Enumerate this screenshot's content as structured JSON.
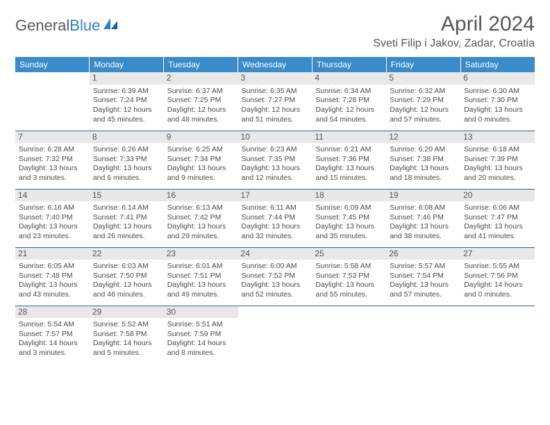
{
  "brand": {
    "part1": "General",
    "part2": "Blue"
  },
  "title": "April 2024",
  "location": "Sveti Filip i Jakov, Zadar, Croatia",
  "day_headers": [
    "Sunday",
    "Monday",
    "Tuesday",
    "Wednesday",
    "Thursday",
    "Friday",
    "Saturday"
  ],
  "colors": {
    "header_bg": "#3a8bc9",
    "header_text": "#ffffff",
    "daynum_bg": "#e8e8e8",
    "rule": "#35648f",
    "text": "#4a4a4a",
    "title": "#555555"
  },
  "weeks": [
    [
      null,
      {
        "n": "1",
        "sr": "Sunrise: 6:39 AM",
        "ss": "Sunset: 7:24 PM",
        "d1": "Daylight: 12 hours",
        "d2": "and 45 minutes."
      },
      {
        "n": "2",
        "sr": "Sunrise: 6:37 AM",
        "ss": "Sunset: 7:25 PM",
        "d1": "Daylight: 12 hours",
        "d2": "and 48 minutes."
      },
      {
        "n": "3",
        "sr": "Sunrise: 6:35 AM",
        "ss": "Sunset: 7:27 PM",
        "d1": "Daylight: 12 hours",
        "d2": "and 51 minutes."
      },
      {
        "n": "4",
        "sr": "Sunrise: 6:34 AM",
        "ss": "Sunset: 7:28 PM",
        "d1": "Daylight: 12 hours",
        "d2": "and 54 minutes."
      },
      {
        "n": "5",
        "sr": "Sunrise: 6:32 AM",
        "ss": "Sunset: 7:29 PM",
        "d1": "Daylight: 12 hours",
        "d2": "and 57 minutes."
      },
      {
        "n": "6",
        "sr": "Sunrise: 6:30 AM",
        "ss": "Sunset: 7:30 PM",
        "d1": "Daylight: 13 hours",
        "d2": "and 0 minutes."
      }
    ],
    [
      {
        "n": "7",
        "sr": "Sunrise: 6:28 AM",
        "ss": "Sunset: 7:32 PM",
        "d1": "Daylight: 13 hours",
        "d2": "and 3 minutes."
      },
      {
        "n": "8",
        "sr": "Sunrise: 6:26 AM",
        "ss": "Sunset: 7:33 PM",
        "d1": "Daylight: 13 hours",
        "d2": "and 6 minutes."
      },
      {
        "n": "9",
        "sr": "Sunrise: 6:25 AM",
        "ss": "Sunset: 7:34 PM",
        "d1": "Daylight: 13 hours",
        "d2": "and 9 minutes."
      },
      {
        "n": "10",
        "sr": "Sunrise: 6:23 AM",
        "ss": "Sunset: 7:35 PM",
        "d1": "Daylight: 13 hours",
        "d2": "and 12 minutes."
      },
      {
        "n": "11",
        "sr": "Sunrise: 6:21 AM",
        "ss": "Sunset: 7:36 PM",
        "d1": "Daylight: 13 hours",
        "d2": "and 15 minutes."
      },
      {
        "n": "12",
        "sr": "Sunrise: 6:20 AM",
        "ss": "Sunset: 7:38 PM",
        "d1": "Daylight: 13 hours",
        "d2": "and 18 minutes."
      },
      {
        "n": "13",
        "sr": "Sunrise: 6:18 AM",
        "ss": "Sunset: 7:39 PM",
        "d1": "Daylight: 13 hours",
        "d2": "and 20 minutes."
      }
    ],
    [
      {
        "n": "14",
        "sr": "Sunrise: 6:16 AM",
        "ss": "Sunset: 7:40 PM",
        "d1": "Daylight: 13 hours",
        "d2": "and 23 minutes."
      },
      {
        "n": "15",
        "sr": "Sunrise: 6:14 AM",
        "ss": "Sunset: 7:41 PM",
        "d1": "Daylight: 13 hours",
        "d2": "and 26 minutes."
      },
      {
        "n": "16",
        "sr": "Sunrise: 6:13 AM",
        "ss": "Sunset: 7:42 PM",
        "d1": "Daylight: 13 hours",
        "d2": "and 29 minutes."
      },
      {
        "n": "17",
        "sr": "Sunrise: 6:11 AM",
        "ss": "Sunset: 7:44 PM",
        "d1": "Daylight: 13 hours",
        "d2": "and 32 minutes."
      },
      {
        "n": "18",
        "sr": "Sunrise: 6:09 AM",
        "ss": "Sunset: 7:45 PM",
        "d1": "Daylight: 13 hours",
        "d2": "and 35 minutes."
      },
      {
        "n": "19",
        "sr": "Sunrise: 6:08 AM",
        "ss": "Sunset: 7:46 PM",
        "d1": "Daylight: 13 hours",
        "d2": "and 38 minutes."
      },
      {
        "n": "20",
        "sr": "Sunrise: 6:06 AM",
        "ss": "Sunset: 7:47 PM",
        "d1": "Daylight: 13 hours",
        "d2": "and 41 minutes."
      }
    ],
    [
      {
        "n": "21",
        "sr": "Sunrise: 6:05 AM",
        "ss": "Sunset: 7:48 PM",
        "d1": "Daylight: 13 hours",
        "d2": "and 43 minutes."
      },
      {
        "n": "22",
        "sr": "Sunrise: 6:03 AM",
        "ss": "Sunset: 7:50 PM",
        "d1": "Daylight: 13 hours",
        "d2": "and 46 minutes."
      },
      {
        "n": "23",
        "sr": "Sunrise: 6:01 AM",
        "ss": "Sunset: 7:51 PM",
        "d1": "Daylight: 13 hours",
        "d2": "and 49 minutes."
      },
      {
        "n": "24",
        "sr": "Sunrise: 6:00 AM",
        "ss": "Sunset: 7:52 PM",
        "d1": "Daylight: 13 hours",
        "d2": "and 52 minutes."
      },
      {
        "n": "25",
        "sr": "Sunrise: 5:58 AM",
        "ss": "Sunset: 7:53 PM",
        "d1": "Daylight: 13 hours",
        "d2": "and 55 minutes."
      },
      {
        "n": "26",
        "sr": "Sunrise: 5:57 AM",
        "ss": "Sunset: 7:54 PM",
        "d1": "Daylight: 13 hours",
        "d2": "and 57 minutes."
      },
      {
        "n": "27",
        "sr": "Sunrise: 5:55 AM",
        "ss": "Sunset: 7:56 PM",
        "d1": "Daylight: 14 hours",
        "d2": "and 0 minutes."
      }
    ],
    [
      {
        "n": "28",
        "sr": "Sunrise: 5:54 AM",
        "ss": "Sunset: 7:57 PM",
        "d1": "Daylight: 14 hours",
        "d2": "and 3 minutes."
      },
      {
        "n": "29",
        "sr": "Sunrise: 5:52 AM",
        "ss": "Sunset: 7:58 PM",
        "d1": "Daylight: 14 hours",
        "d2": "and 5 minutes."
      },
      {
        "n": "30",
        "sr": "Sunrise: 5:51 AM",
        "ss": "Sunset: 7:59 PM",
        "d1": "Daylight: 14 hours",
        "d2": "and 8 minutes."
      },
      null,
      null,
      null,
      null
    ]
  ]
}
